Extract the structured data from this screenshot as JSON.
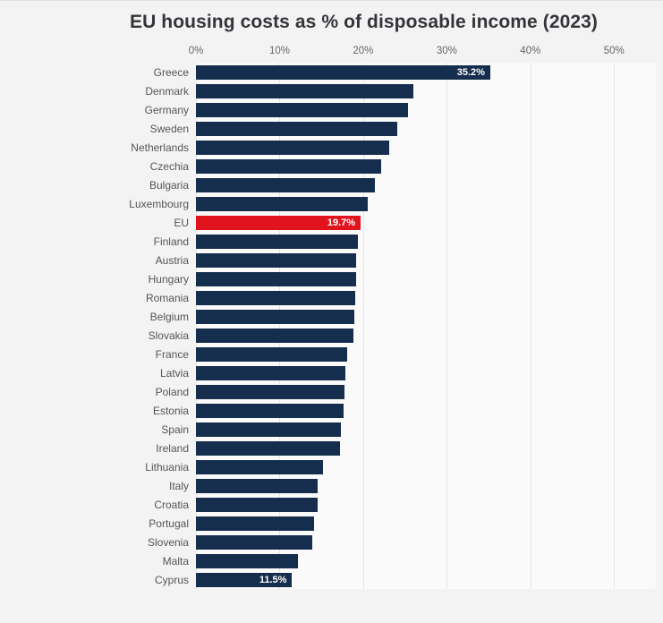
{
  "header": {
    "title": "EU housing costs as % of disposable income (2023)"
  },
  "chart": {
    "axis_ticks": [
      "0%",
      "10%",
      "20%",
      "30%",
      "40%",
      "50%"
    ],
    "bar_color": "#152e4d",
    "highlight_color": "#e1141e",
    "value_label_color": "#ffffff",
    "plot_background": "#fafafa",
    "page_background": "#f3f3f3",
    "gridline_color": "#e7e7e7"
  },
  "chart_data": {
    "type": "bar",
    "orientation": "horizontal",
    "title": "EU housing costs as % of disposable income (2023)",
    "xlabel": "",
    "ylabel": "",
    "xlim": [
      0,
      55
    ],
    "x_ticks_percent": [
      0,
      10,
      20,
      30,
      40,
      50
    ],
    "grid": "vertical",
    "categories": [
      "Greece",
      "Denmark",
      "Germany",
      "Sweden",
      "Netherlands",
      "Czechia",
      "Bulgaria",
      "Luxembourg",
      "EU",
      "Finland",
      "Austria",
      "Hungary",
      "Romania",
      "Belgium",
      "Slovakia",
      "France",
      "Latvia",
      "Poland",
      "Estonia",
      "Spain",
      "Ireland",
      "Lithuania",
      "Italy",
      "Croatia",
      "Portugal",
      "Slovenia",
      "Malta",
      "Cyprus"
    ],
    "values": [
      35.2,
      26.0,
      25.4,
      24.1,
      23.1,
      22.2,
      21.4,
      20.5,
      19.7,
      19.4,
      19.2,
      19.2,
      19.1,
      18.9,
      18.8,
      18.1,
      17.9,
      17.8,
      17.7,
      17.3,
      17.2,
      15.2,
      14.6,
      14.5,
      14.1,
      13.9,
      12.2,
      11.5
    ],
    "labeled": {
      "Greece": "35.2%",
      "EU": "19.7%",
      "Cyprus": "11.5%"
    },
    "highlight_category": "EU",
    "note": "values without printed data labels are estimated from bar lengths"
  }
}
